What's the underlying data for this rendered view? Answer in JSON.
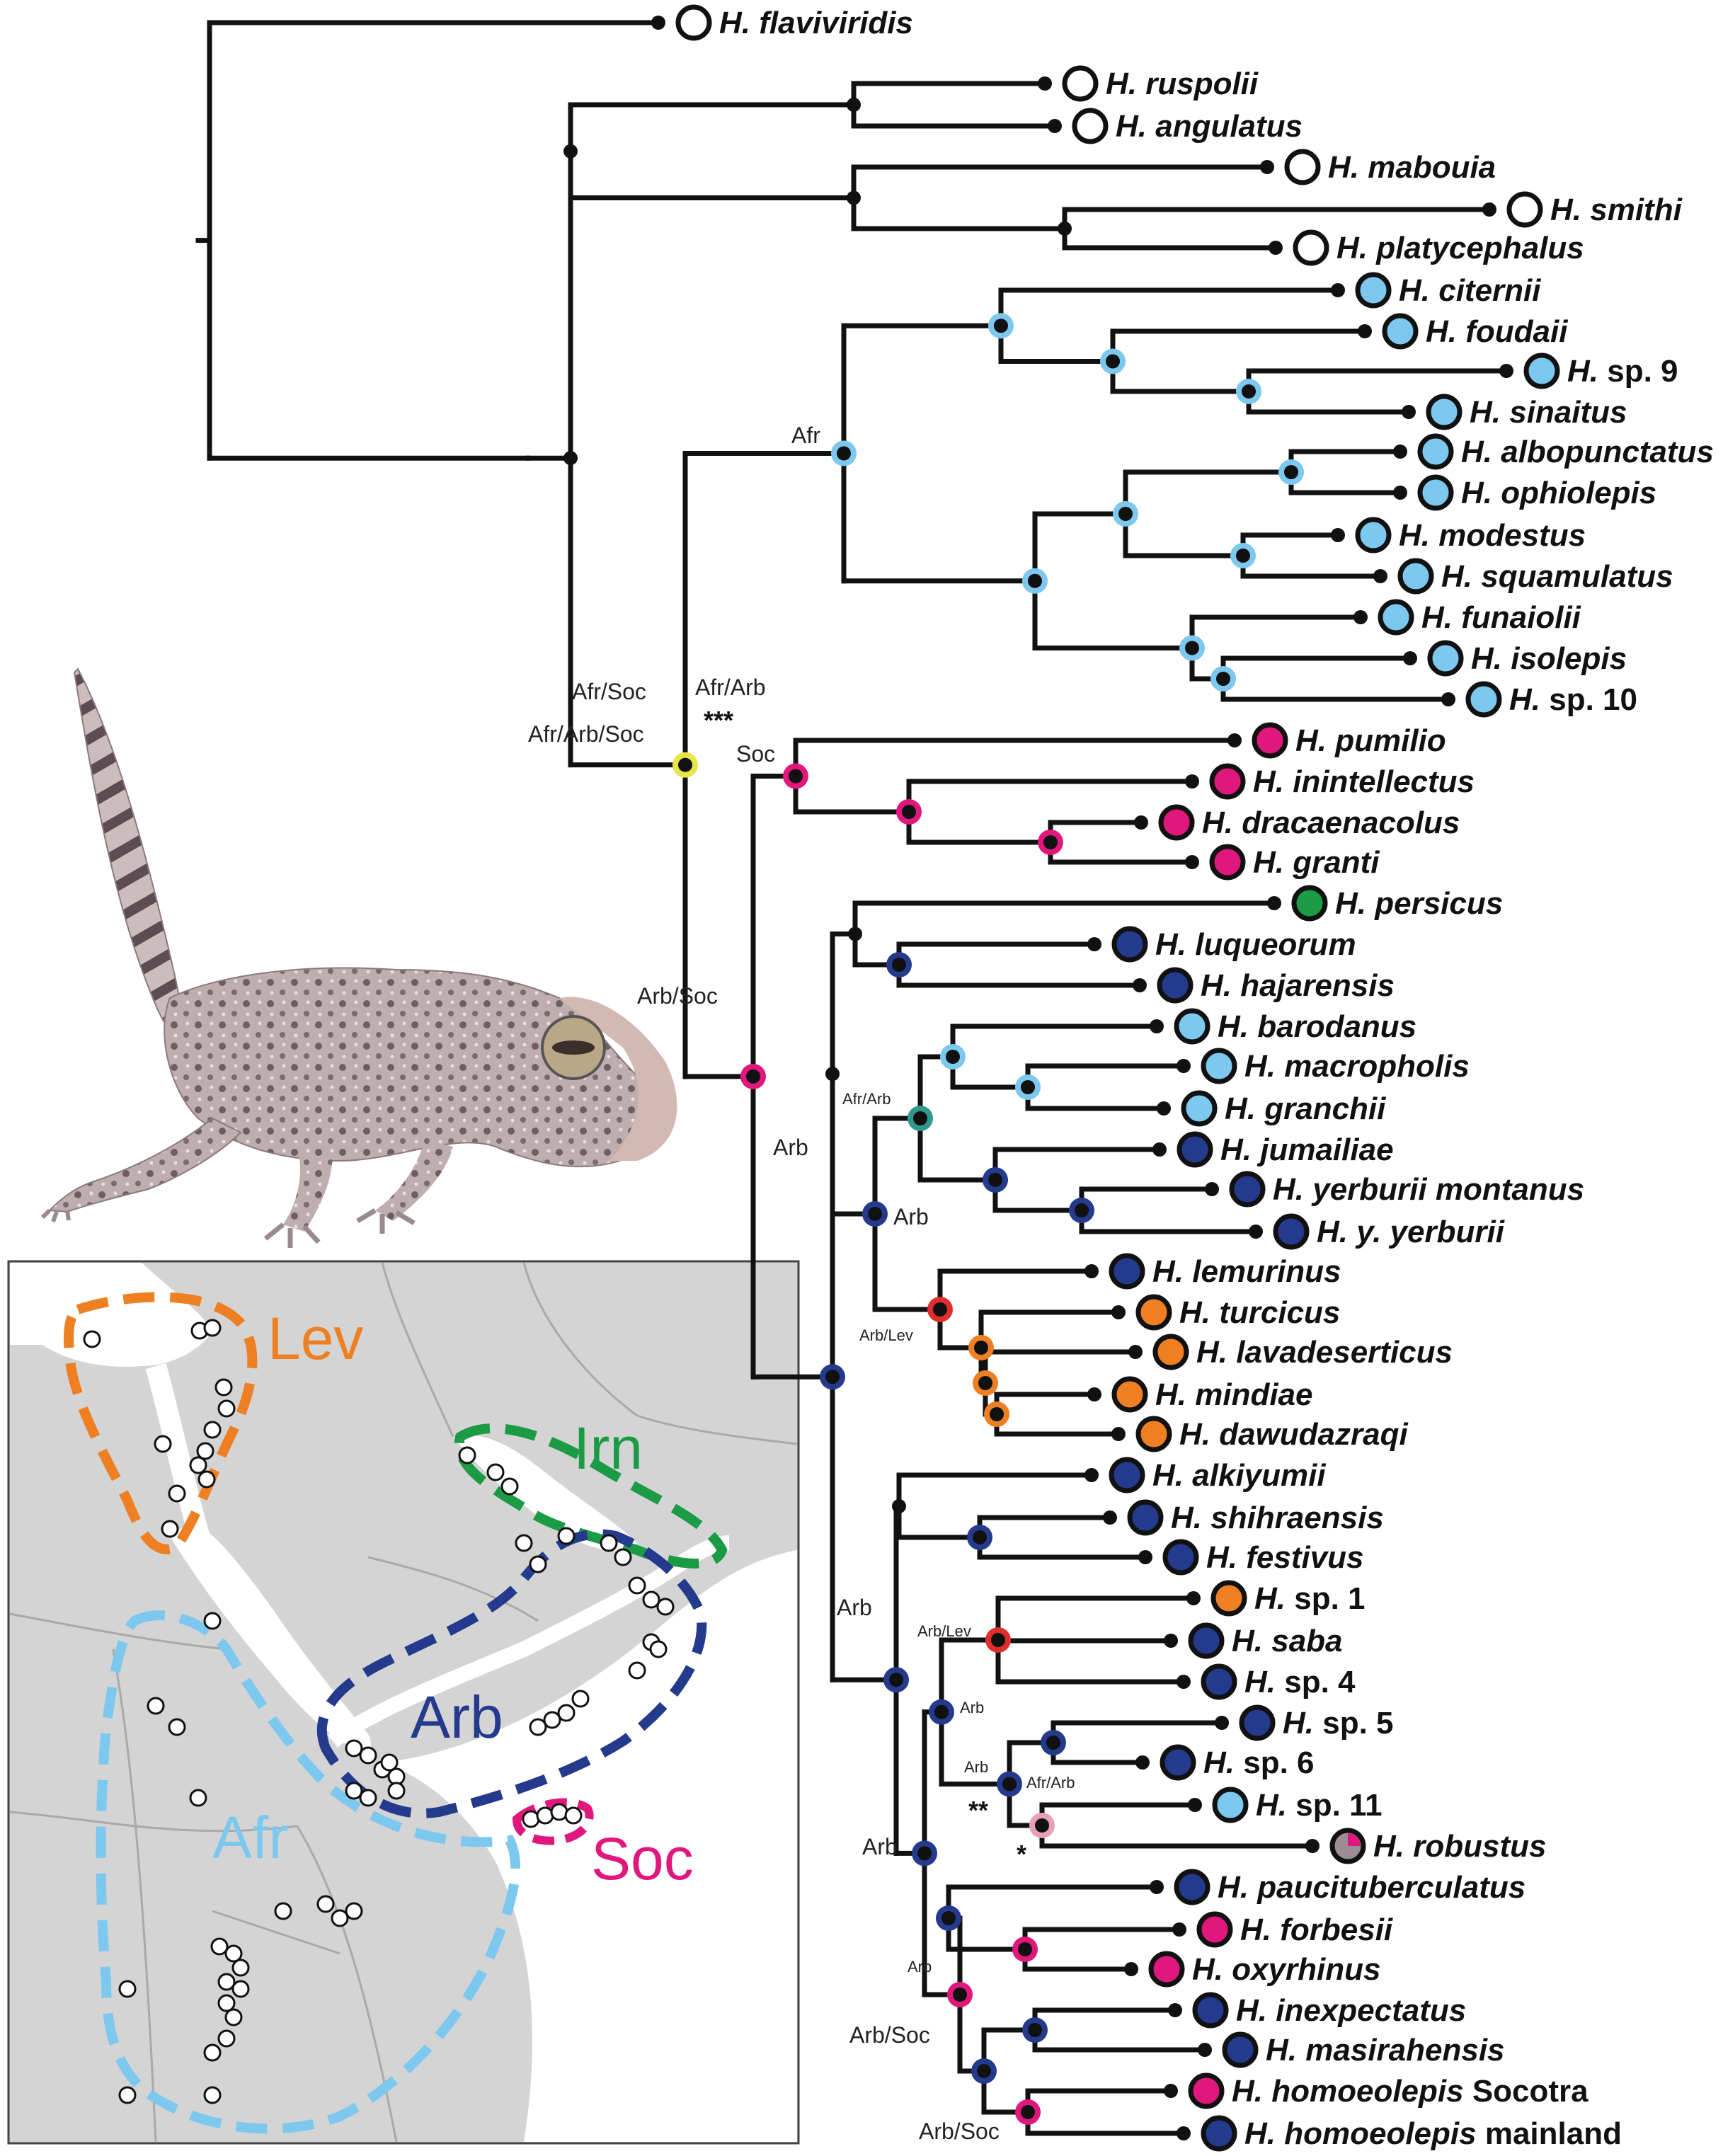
{
  "colors": {
    "Afr": "#7cc8ef",
    "Arb": "#243a8c",
    "Soc": "#e0177c",
    "Lev": "#ee7f22",
    "Irn": "#1c9b45",
    "none": "#ffffff",
    "red": "#e02d2d",
    "teal": "#2f9a8c",
    "branch": "#111111",
    "sea": "#ffffff",
    "land": "#d4d4d4"
  },
  "tips": [
    {
      "id": "flav",
      "genus": "H.",
      "species": "flaviviridis",
      "area": "none"
    },
    {
      "id": "rusp",
      "genus": "H.",
      "species": "ruspolii",
      "area": "none"
    },
    {
      "id": "angu",
      "genus": "H.",
      "species": "angulatus",
      "area": "none"
    },
    {
      "id": "mabo",
      "genus": "H.",
      "species": "mabouia",
      "area": "none"
    },
    {
      "id": "smit",
      "genus": "H.",
      "species": "smithi",
      "area": "none"
    },
    {
      "id": "plat",
      "genus": "H.",
      "species": "platycephalus",
      "area": "none"
    },
    {
      "id": "cite",
      "genus": "H.",
      "species": "citernii",
      "area": "Afr"
    },
    {
      "id": "foud",
      "genus": "H.",
      "species": "foudaii",
      "area": "Afr"
    },
    {
      "id": "sp9",
      "genus": "H.",
      "species": "sp. 9",
      "roman": true,
      "area": "Afr"
    },
    {
      "id": "sina",
      "genus": "H.",
      "species": "sinaitus",
      "area": "Afr"
    },
    {
      "id": "albo",
      "genus": "H.",
      "species": "albopunctatus",
      "area": "Afr"
    },
    {
      "id": "ophi",
      "genus": "H.",
      "species": "ophiolepis",
      "area": "Afr"
    },
    {
      "id": "mode",
      "genus": "H.",
      "species": "modestus",
      "area": "Afr"
    },
    {
      "id": "squa",
      "genus": "H.",
      "species": "squamulatus",
      "area": "Afr"
    },
    {
      "id": "funa",
      "genus": "H.",
      "species": "funaiolii",
      "area": "Afr"
    },
    {
      "id": "isol",
      "genus": "H.",
      "species": "isolepis",
      "area": "Afr"
    },
    {
      "id": "sp10",
      "genus": "H.",
      "species": "sp. 10",
      "roman": true,
      "area": "Afr"
    },
    {
      "id": "pumi",
      "genus": "H.",
      "species": "pumilio",
      "area": "Soc"
    },
    {
      "id": "inin",
      "genus": "H.",
      "species": "inintellectus",
      "area": "Soc"
    },
    {
      "id": "drac",
      "genus": "H.",
      "species": "dracaenacolus",
      "area": "Soc"
    },
    {
      "id": "gran",
      "genus": "H.",
      "species": "granti",
      "area": "Soc"
    },
    {
      "id": "pers",
      "genus": "H.",
      "species": "persicus",
      "area": "Irn"
    },
    {
      "id": "luqu",
      "genus": "H.",
      "species": "luqueorum",
      "area": "Arb"
    },
    {
      "id": "haja",
      "genus": "H.",
      "species": "hajarensis",
      "area": "Arb"
    },
    {
      "id": "baro",
      "genus": "H.",
      "species": "barodanus",
      "area": "Afr"
    },
    {
      "id": "macr",
      "genus": "H.",
      "species": "macropholis",
      "area": "Afr"
    },
    {
      "id": "granc",
      "genus": "H.",
      "species": "granchii",
      "area": "Afr"
    },
    {
      "id": "juma",
      "genus": "H.",
      "species": "jumailiae",
      "area": "Arb"
    },
    {
      "id": "yemo",
      "genus": "H.",
      "species": "yerburii montanus",
      "area": "Arb"
    },
    {
      "id": "yyer",
      "genus": "H.",
      "species": "y. yerburii",
      "area": "Arb"
    },
    {
      "id": "lemu",
      "genus": "H.",
      "species": "lemurinus",
      "area": "Arb"
    },
    {
      "id": "turc",
      "genus": "H.",
      "species": "turcicus",
      "area": "Lev"
    },
    {
      "id": "lava",
      "genus": "H.",
      "species": "lavadeserticus",
      "area": "Lev"
    },
    {
      "id": "mind",
      "genus": "H.",
      "species": "mindiae",
      "area": "Lev"
    },
    {
      "id": "dawu",
      "genus": "H.",
      "species": "dawudazraqi",
      "area": "Lev"
    },
    {
      "id": "alki",
      "genus": "H.",
      "species": "alkiyumii",
      "area": "Arb"
    },
    {
      "id": "shih",
      "genus": "H.",
      "species": "shihraensis",
      "area": "Arb"
    },
    {
      "id": "fest",
      "genus": "H.",
      "species": "festivus",
      "area": "Arb"
    },
    {
      "id": "sp1",
      "genus": "H.",
      "species": "sp. 1",
      "roman": true,
      "area": "Lev"
    },
    {
      "id": "saba",
      "genus": "H.",
      "species": "saba",
      "area": "Arb"
    },
    {
      "id": "sp4",
      "genus": "H.",
      "species": "sp. 4",
      "roman": true,
      "area": "Arb"
    },
    {
      "id": "sp5",
      "genus": "H.",
      "species": "sp. 5",
      "roman": true,
      "area": "Arb"
    },
    {
      "id": "sp6",
      "genus": "H.",
      "species": "sp. 6",
      "roman": true,
      "area": "Arb"
    },
    {
      "id": "sp11",
      "genus": "H.",
      "species": "sp. 11",
      "roman": true,
      "area": "Afr"
    },
    {
      "id": "robu",
      "genus": "H.",
      "species": "robustus",
      "area": "mixed"
    },
    {
      "id": "pauc",
      "genus": "H.",
      "species": "paucituberculatus",
      "area": "Arb"
    },
    {
      "id": "forb",
      "genus": "H.",
      "species": "forbesii",
      "area": "Soc"
    },
    {
      "id": "oxyr",
      "genus": "H.",
      "species": "oxyrhinus",
      "area": "Soc"
    },
    {
      "id": "inex",
      "genus": "H.",
      "species": "inexpectatus",
      "area": "Arb"
    },
    {
      "id": "masi",
      "genus": "H.",
      "species": "masirahensis",
      "area": "Arb"
    },
    {
      "id": "hoso",
      "genus": "H.",
      "species": "homoeolepis",
      "suffix": "Socotra",
      "area": "Soc"
    },
    {
      "id": "homa",
      "genus": "H.",
      "species": "homoeolepis",
      "suffix": "mainland",
      "area": "Arb"
    }
  ],
  "node_labels": {
    "afr": "Afr",
    "afrsoc": "Afr/Soc",
    "afrarb_top": "Afr/Arb",
    "afrarbsoc": "Afr/Arb/Soc",
    "stars3": "***",
    "soc": "Soc",
    "arbsoc1": "Arb/Soc",
    "arb1": "Arb",
    "afrarb2": "Afr/Arb",
    "arb2": "Arb",
    "arblev1": "Arb/Lev",
    "arb3": "Arb",
    "arblev2": "Arb/Lev",
    "arb4": "Arb",
    "arb5": "Arb",
    "afrarb3": "Afr/Arb",
    "stars2": "**",
    "stars1": "*",
    "arb6": "Arb",
    "arb7": "Arb",
    "arbsoc2": "Arb/Soc",
    "arbsoc3": "Arb/Soc"
  },
  "map": {
    "regions": [
      {
        "id": "Lev",
        "label": "Lev"
      },
      {
        "id": "Irn",
        "label": "Irn"
      },
      {
        "id": "Arb",
        "label": "Arb"
      },
      {
        "id": "Afr",
        "label": "Afr"
      },
      {
        "id": "Soc",
        "label": "Soc"
      }
    ]
  }
}
